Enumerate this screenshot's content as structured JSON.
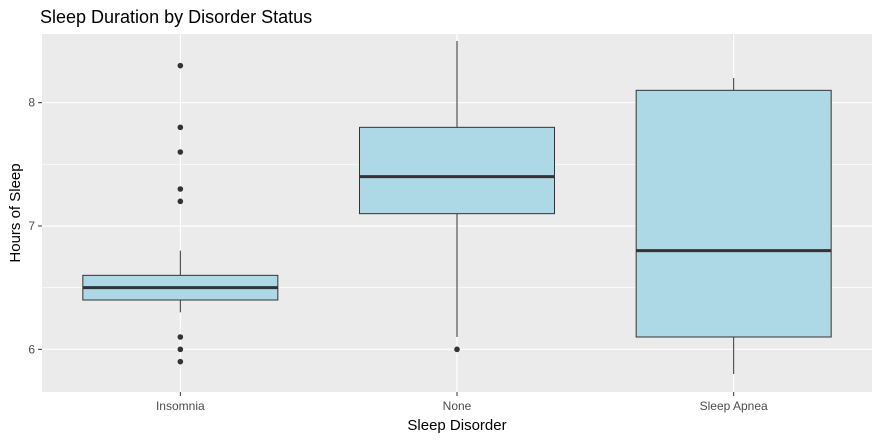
{
  "chart_data": {
    "type": "boxplot",
    "title": "Sleep Duration by Disorder Status",
    "xlabel": "Sleep Disorder",
    "ylabel": "Hours of Sleep",
    "ylim": [
      5.8,
      8.5
    ],
    "yticks": [
      6,
      7,
      8
    ],
    "grid": true,
    "legend": "none",
    "colors": {
      "panel": "#ebebeb",
      "grid": "#ffffff",
      "box_fill": "#add8e6",
      "box_line": "#333333",
      "tick_text": "#4d4d4d"
    },
    "categories": [
      "Insomnia",
      "None",
      "Sleep Apnea"
    ],
    "boxes": [
      {
        "category": "Insomnia",
        "whisker_low": 6.3,
        "q1": 6.4,
        "median": 6.5,
        "q3": 6.6,
        "whisker_high": 6.8,
        "outliers": [
          8.3,
          7.8,
          7.6,
          7.3,
          7.2,
          6.1,
          6.0,
          5.9
        ]
      },
      {
        "category": "None",
        "whisker_low": 6.1,
        "q1": 7.1,
        "median": 7.4,
        "q3": 7.8,
        "whisker_high": 8.5,
        "outliers": [
          6.0
        ]
      },
      {
        "category": "Sleep Apnea",
        "whisker_low": 5.8,
        "q1": 6.1,
        "median": 6.8,
        "q3": 8.1,
        "whisker_high": 8.2,
        "outliers": []
      }
    ]
  }
}
